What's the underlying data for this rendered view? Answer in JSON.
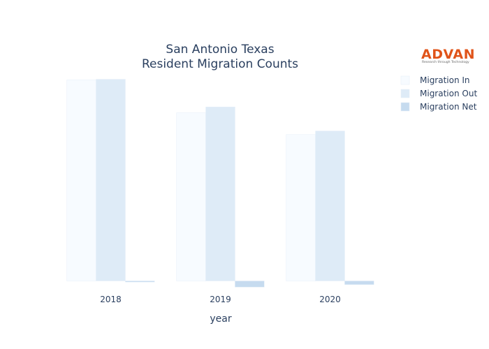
{
  "chart_data": {
    "type": "bar",
    "title": [
      "San Antonio Texas",
      "Resident Migration Counts"
    ],
    "xlabel": "year",
    "ylabel": "",
    "categories": [
      "2018",
      "2019",
      "2020"
    ],
    "series": [
      {
        "name": "Migration In",
        "values": [
          276000,
          231000,
          201000
        ],
        "color": "#f7fbff"
      },
      {
        "name": "Migration Out",
        "values": [
          277000,
          239000,
          206000
        ],
        "color": "#deebf7"
      },
      {
        "name": "Migration Net",
        "values": [
          -1500,
          -8500,
          -5000
        ],
        "color": "#c6dbef"
      }
    ],
    "ylim": [
      -12000,
      290000
    ],
    "grid": false,
    "legend_position": "top-right"
  },
  "logo": {
    "name": "ADVAN",
    "tagline": "Research through Technology"
  }
}
